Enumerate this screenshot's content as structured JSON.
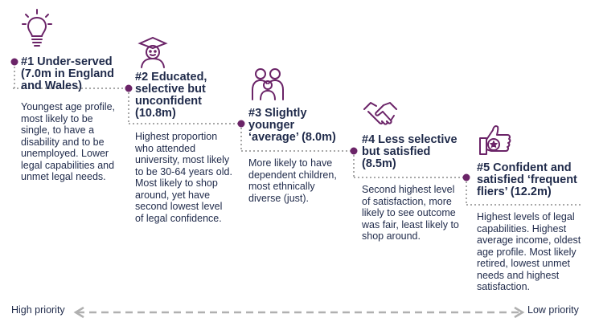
{
  "segments": [
    {
      "title_lines": [
        "#1 Under-served",
        "(7.0m in England",
        "and Wales)"
      ],
      "desc_lines": [
        "Youngest age profile,",
        "most likely to be",
        "single, to have a",
        "disability and to be",
        "unemployed. Lower",
        "legal capabilities and",
        "unmet legal needs."
      ],
      "icon": "lightbulb-icon"
    },
    {
      "title_lines": [
        "#2 Educated,",
        "selective but",
        "unconfident",
        "(10.8m)"
      ],
      "desc_lines": [
        "Highest proportion",
        "who attended",
        "university, most likely",
        "to be 30-64 years old.",
        "Most likely to shop",
        "around, yet have",
        "second lowest level",
        "of legal confidence."
      ],
      "icon": "graduate-person-icon"
    },
    {
      "title_lines": [
        "#3 Slightly",
        "younger",
        "‘average’ (8.0m)"
      ],
      "desc_lines": [
        "More likely to have",
        "dependent children,",
        "most ethnically",
        "diverse (just)."
      ],
      "icon": "family-icon"
    },
    {
      "title_lines": [
        "#4 Less selective",
        "but satisfied",
        "(8.5m)"
      ],
      "desc_lines": [
        "Second highest level",
        "of satisfaction, more",
        "likely to see outcome",
        "was fair, least likely to",
        "shop around."
      ],
      "icon": "handshake-icon"
    },
    {
      "title_lines": [
        "#5 Confident and",
        "satisfied ‘frequent",
        "fliers’ (12.2m)"
      ],
      "desc_lines": [
        "Highest levels of legal",
        "capabilities. Highest",
        "average income, oldest",
        "age profile. Most likely",
        "retired, lowest unmet",
        "needs and highest",
        "satisfaction."
      ],
      "icon": "thumbs-up-star-icon"
    }
  ],
  "scale": {
    "left_label": "High priority",
    "right_label": "Low priority"
  },
  "colors": {
    "accent": "#6b2468",
    "text": "#1f2a4a",
    "dotted_line": "#a8a8a8",
    "arrow": "#b0b0b0"
  }
}
